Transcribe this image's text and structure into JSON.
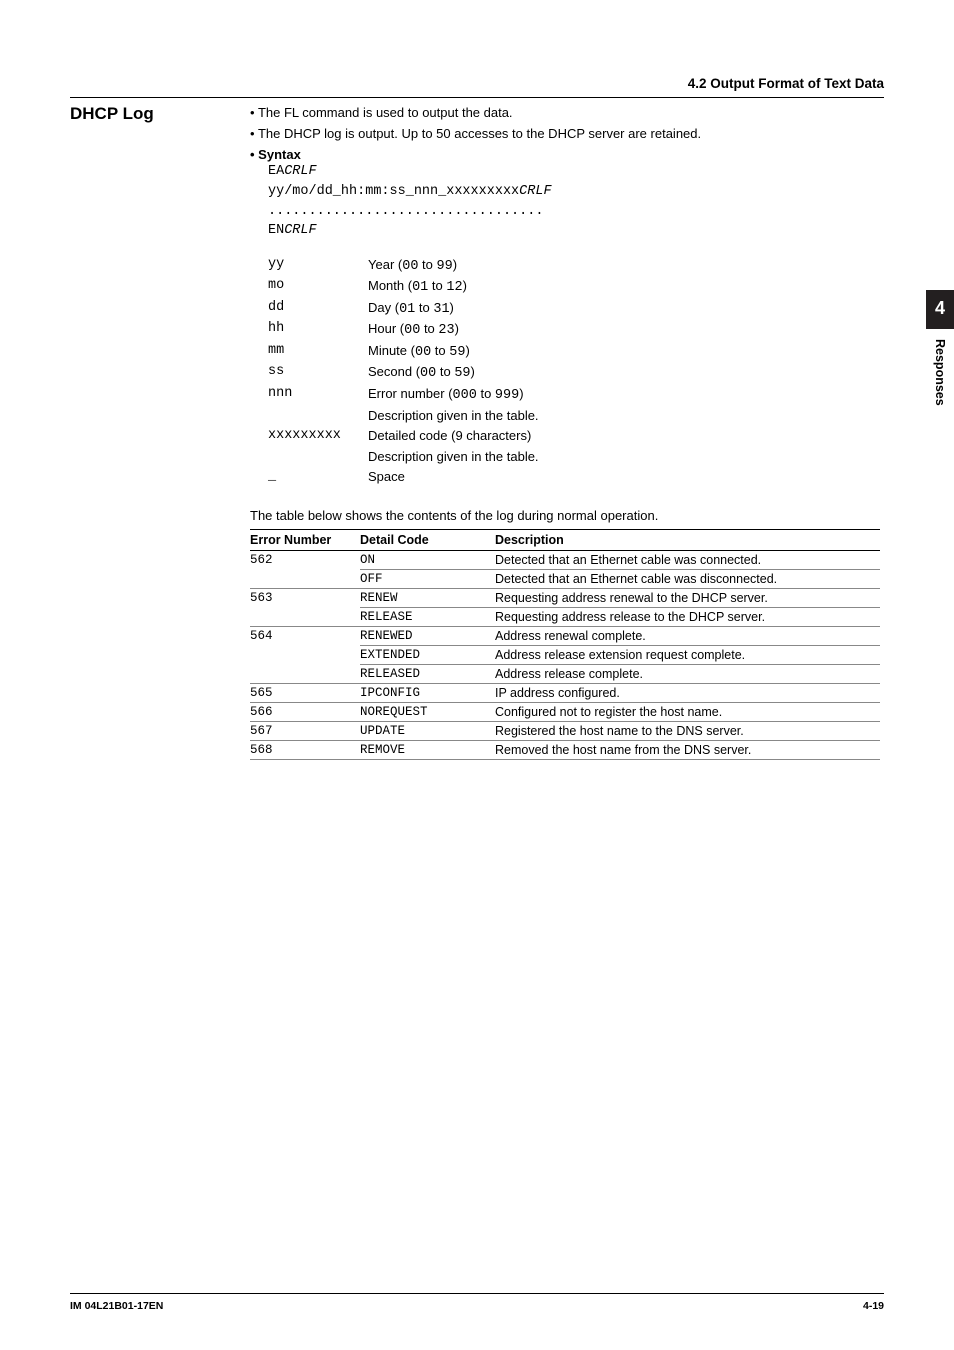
{
  "header": {
    "section_ref": "4.2  Output Format of Text Data"
  },
  "section": {
    "title": "DHCP Log"
  },
  "intro_bullets": [
    "The FL command is used to output the data.",
    "The DHCP log is output. Up to 50 accesses to the DHCP server are retained."
  ],
  "syntax": {
    "label": "Syntax",
    "line1_a": "EA",
    "line1_b": "CRLF",
    "line2_a": "yy/mo/dd_hh:mm:ss_nnn_xxxxxxxxx",
    "line2_b": "CRLF",
    "dots": "..................................",
    "line3_a": "EN",
    "line3_b": "CRLF"
  },
  "fields": [
    {
      "k": "yy",
      "pre": "Year (",
      "c1": "00",
      "mid": " to ",
      "c2": "99",
      "post": ")"
    },
    {
      "k": "mo",
      "pre": "Month (",
      "c1": "01",
      "mid": " to ",
      "c2": "12",
      "post": ")"
    },
    {
      "k": "dd",
      "pre": "Day (",
      "c1": "01",
      "mid": " to ",
      "c2": "31",
      "post": ")"
    },
    {
      "k": "hh",
      "pre": "Hour (",
      "c1": "00",
      "mid": " to ",
      "c2": "23",
      "post": ")"
    },
    {
      "k": "mm",
      "pre": "Minute (",
      "c1": "00",
      "mid": " to ",
      "c2": "59",
      "post": ")"
    },
    {
      "k": "ss",
      "pre": "Second (",
      "c1": "00",
      "mid": " to ",
      "c2": "59",
      "post": ")"
    },
    {
      "k": "nnn",
      "pre": "Error number (",
      "c1": "000",
      "mid": " to ",
      "c2": "999",
      "post": ")"
    },
    {
      "k": "",
      "pre": "Description given in the table.",
      "c1": "",
      "mid": "",
      "c2": "",
      "post": ""
    },
    {
      "k": "xxxxxxxxx",
      "pre": "Detailed code (9 characters)",
      "c1": "",
      "mid": "",
      "c2": "",
      "post": ""
    },
    {
      "k": "",
      "pre": "Description given in the table.",
      "c1": "",
      "mid": "",
      "c2": "",
      "post": ""
    },
    {
      "k": "_",
      "pre": "Space",
      "c1": "",
      "mid": "",
      "c2": "",
      "post": ""
    }
  ],
  "table": {
    "intro": "The table below shows the contents of the log during normal operation.",
    "headers": {
      "a": "Error Number",
      "b": "Detail Code",
      "c": "Description"
    },
    "rows": [
      {
        "num": "562",
        "code": "ON",
        "desc": "Detected that an Ethernet cable was connected.",
        "cls": "group-top"
      },
      {
        "num": "",
        "code": "OFF",
        "desc": "Detected that an Ethernet cable was disconnected.",
        "cls": "inner-top"
      },
      {
        "num": "563",
        "code": "RENEW",
        "desc": "Requesting address renewal to the DHCP server.",
        "cls": "group-top"
      },
      {
        "num": "",
        "code": "RELEASE",
        "desc": "Requesting address release to the DHCP server.",
        "cls": "inner-top"
      },
      {
        "num": "564",
        "code": "RENEWED",
        "desc": "Address renewal complete.",
        "cls": "group-top"
      },
      {
        "num": "",
        "code": "EXTENDED",
        "desc": "Address release extension request complete.",
        "cls": "inner-top"
      },
      {
        "num": "",
        "code": "RELEASED",
        "desc": "Address release complete.",
        "cls": "inner-top"
      },
      {
        "num": "565",
        "code": "IPCONFIG",
        "desc": "IP address configured.",
        "cls": "group-top"
      },
      {
        "num": "566",
        "code": "NOREQUEST",
        "desc": "Configured not to register the host name.",
        "cls": "group-top"
      },
      {
        "num": "567",
        "code": "UPDATE",
        "desc": "Registered the host name to the DNS server.",
        "cls": "group-top"
      },
      {
        "num": "568",
        "code": "REMOVE",
        "desc": "Removed the host name from the DNS server.",
        "cls": "group-top last"
      }
    ]
  },
  "sidetab": {
    "num": "4",
    "label": "Responses"
  },
  "footer": {
    "left": "IM 04L21B01-17EN",
    "right": "4-19"
  }
}
